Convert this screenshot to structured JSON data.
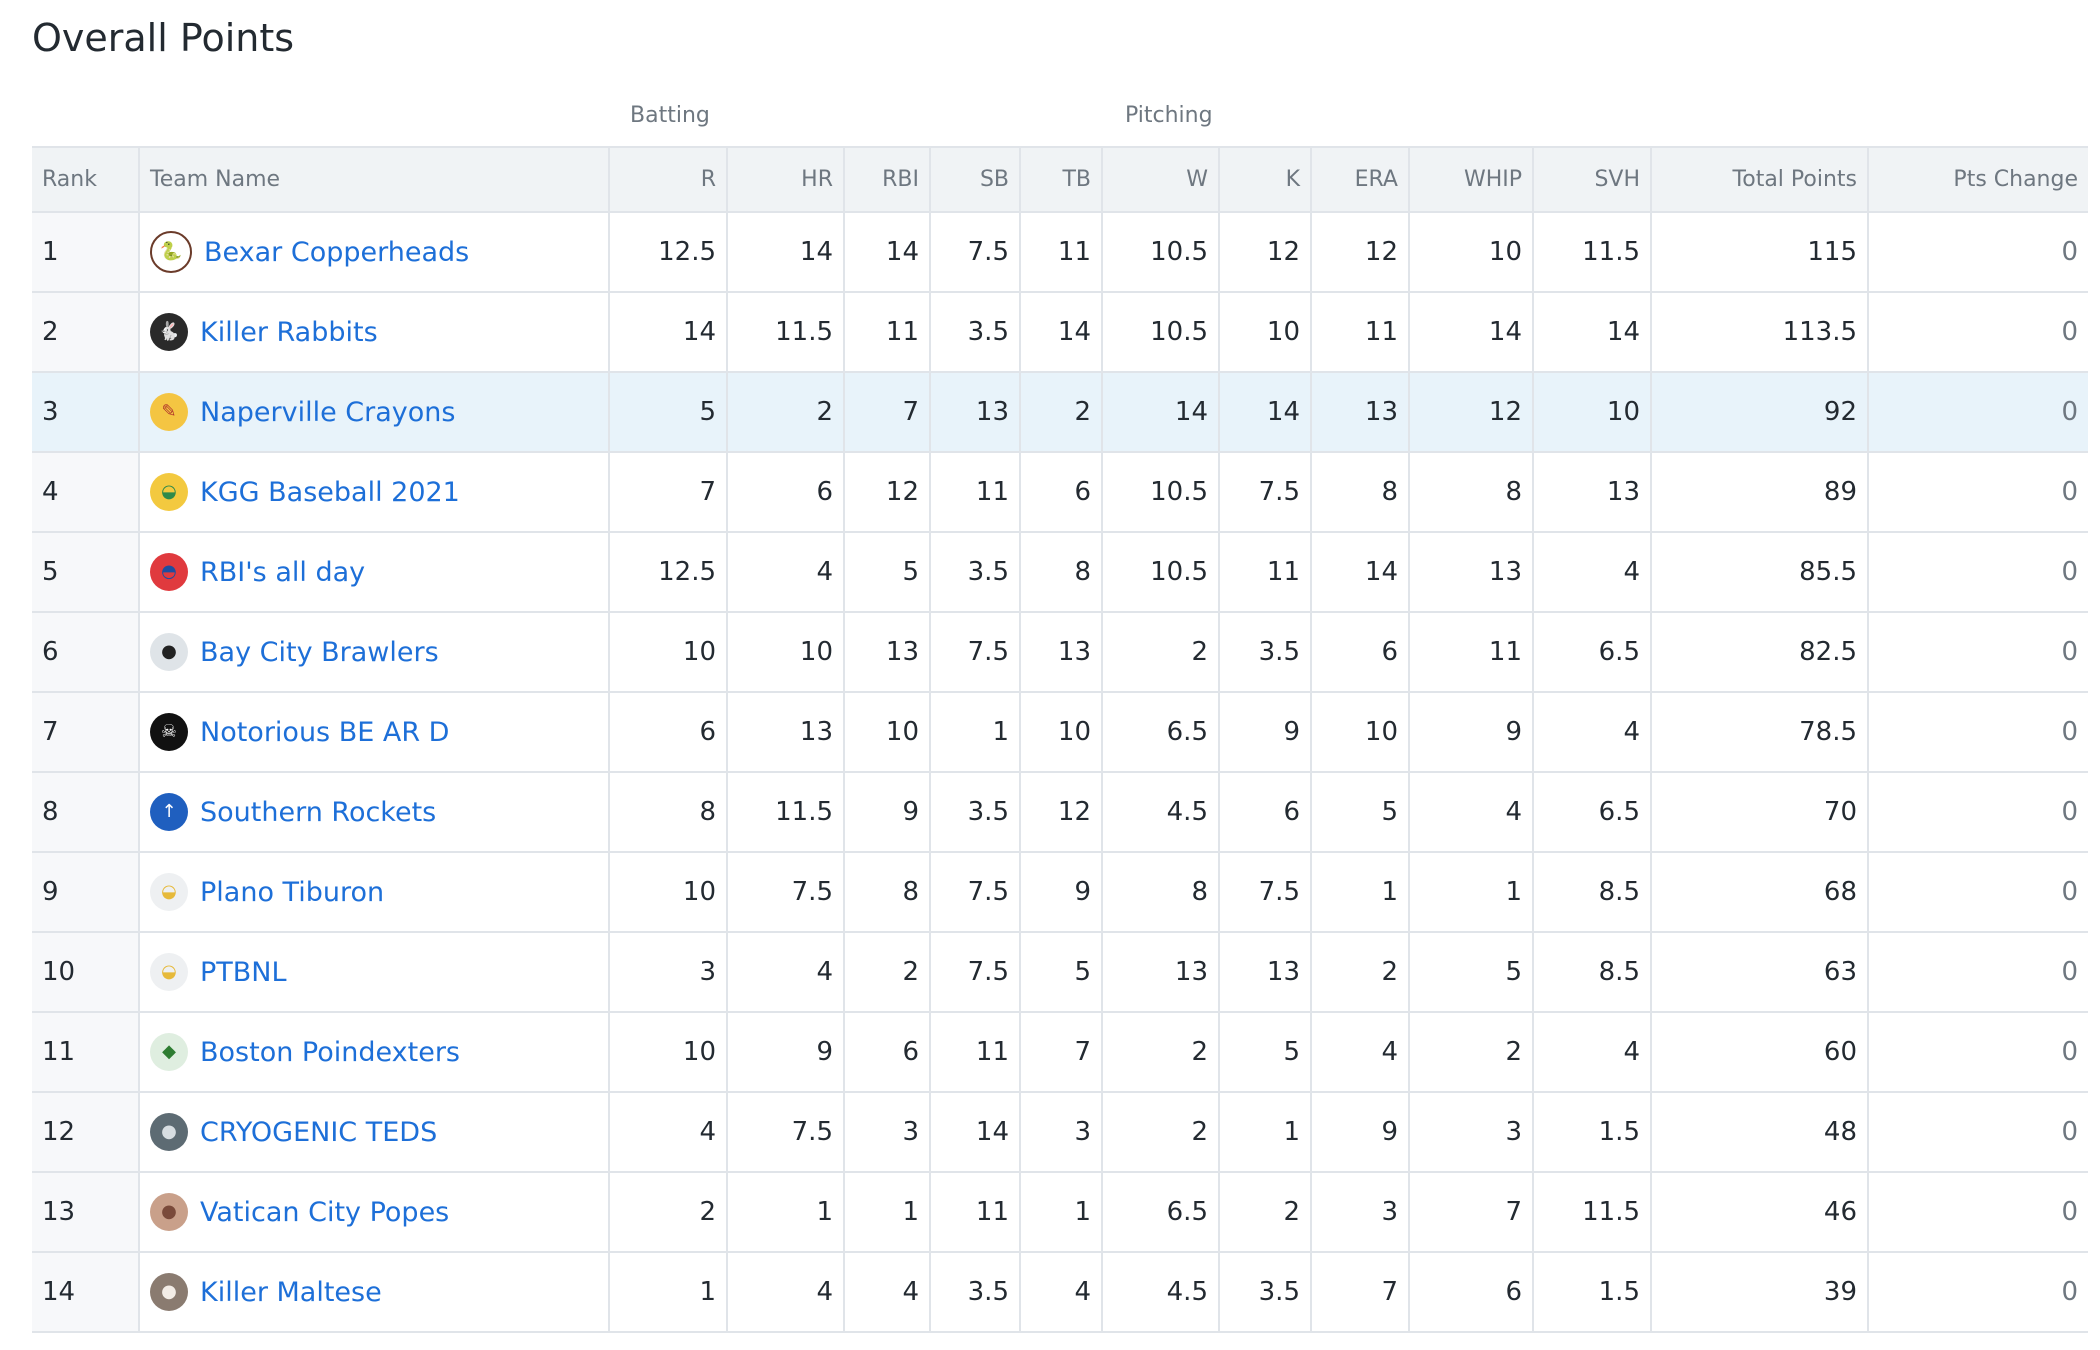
{
  "page": {
    "title": "Overall Points"
  },
  "groups": {
    "batting": "Batting",
    "pitching": "Pitching"
  },
  "columns": [
    "Rank",
    "Team Name",
    "R",
    "HR",
    "RBI",
    "SB",
    "TB",
    "W",
    "K",
    "ERA",
    "WHIP",
    "SVH",
    "Total Points",
    "Pts Change"
  ],
  "highlight_color": "#e8f3fa",
  "link_color": "#1d6fd8",
  "rows": [
    {
      "rank": "1",
      "team": "Bexar Copperheads",
      "logo": "copperhead-logo-icon",
      "stats": [
        "12.5",
        "14",
        "14",
        "7.5",
        "11",
        "10.5",
        "12",
        "12",
        "10",
        "11.5"
      ],
      "total": "115",
      "change": "0"
    },
    {
      "rank": "2",
      "team": "Killer Rabbits",
      "logo": "rabbit-logo-icon",
      "stats": [
        "14",
        "11.5",
        "11",
        "3.5",
        "14",
        "10.5",
        "10",
        "11",
        "14",
        "14"
      ],
      "total": "113.5",
      "change": "0"
    },
    {
      "rank": "3",
      "team": "Naperville Crayons",
      "logo": "crayons-logo-icon",
      "stats": [
        "5",
        "2",
        "7",
        "13",
        "2",
        "14",
        "14",
        "13",
        "12",
        "10"
      ],
      "total": "92",
      "change": "0",
      "highlight": true
    },
    {
      "rank": "4",
      "team": "KGG Baseball 2021",
      "logo": "ball-cap-logo-icon",
      "stats": [
        "7",
        "6",
        "12",
        "11",
        "6",
        "10.5",
        "7.5",
        "8",
        "8",
        "13"
      ],
      "total": "89",
      "change": "0"
    },
    {
      "rank": "5",
      "team": "RBI's all day",
      "logo": "red-helmet-logo-icon",
      "stats": [
        "12.5",
        "4",
        "5",
        "3.5",
        "8",
        "10.5",
        "11",
        "14",
        "13",
        "4"
      ],
      "total": "85.5",
      "change": "0"
    },
    {
      "rank": "6",
      "team": "Bay City Brawlers",
      "logo": "dog-logo-icon",
      "stats": [
        "10",
        "10",
        "13",
        "7.5",
        "13",
        "2",
        "3.5",
        "6",
        "11",
        "6.5"
      ],
      "total": "82.5",
      "change": "0"
    },
    {
      "rank": "7",
      "team": "Notorious BE AR D",
      "logo": "skull-badge-logo-icon",
      "stats": [
        "6",
        "13",
        "10",
        "1",
        "10",
        "6.5",
        "9",
        "10",
        "9",
        "4"
      ],
      "total": "78.5",
      "change": "0"
    },
    {
      "rank": "8",
      "team": "Southern Rockets",
      "logo": "rocket-logo-icon",
      "stats": [
        "8",
        "11.5",
        "9",
        "3.5",
        "12",
        "4.5",
        "6",
        "5",
        "4",
        "6.5"
      ],
      "total": "70",
      "change": "0"
    },
    {
      "rank": "9",
      "team": "Plano Tiburon",
      "logo": "yellow-cap-logo-icon",
      "stats": [
        "10",
        "7.5",
        "8",
        "7.5",
        "9",
        "8",
        "7.5",
        "1",
        "1",
        "8.5"
      ],
      "total": "68",
      "change": "0"
    },
    {
      "rank": "10",
      "team": "PTBNL",
      "logo": "yellow-cap-logo-icon",
      "stats": [
        "3",
        "4",
        "2",
        "7.5",
        "5",
        "13",
        "13",
        "2",
        "5",
        "8.5"
      ],
      "total": "63",
      "change": "0"
    },
    {
      "rank": "11",
      "team": "Boston Poindexters",
      "logo": "green-creature-logo-icon",
      "stats": [
        "10",
        "9",
        "6",
        "11",
        "7",
        "2",
        "5",
        "4",
        "2",
        "4"
      ],
      "total": "60",
      "change": "0"
    },
    {
      "rank": "12",
      "team": "CRYOGENIC TEDS",
      "logo": "frozen-head-logo-icon",
      "stats": [
        "4",
        "7.5",
        "3",
        "14",
        "3",
        "2",
        "1",
        "9",
        "3",
        "1.5"
      ],
      "total": "48",
      "change": "0"
    },
    {
      "rank": "13",
      "team": "Vatican City Popes",
      "logo": "pope-photo-logo-icon",
      "stats": [
        "2",
        "1",
        "1",
        "11",
        "1",
        "6.5",
        "2",
        "3",
        "7",
        "11.5"
      ],
      "total": "46",
      "change": "0"
    },
    {
      "rank": "14",
      "team": "Killer Maltese",
      "logo": "maltese-photo-logo-icon",
      "stats": [
        "1",
        "4",
        "4",
        "3.5",
        "4",
        "4.5",
        "3.5",
        "7",
        "6",
        "1.5"
      ],
      "total": "39",
      "change": "0"
    }
  ]
}
